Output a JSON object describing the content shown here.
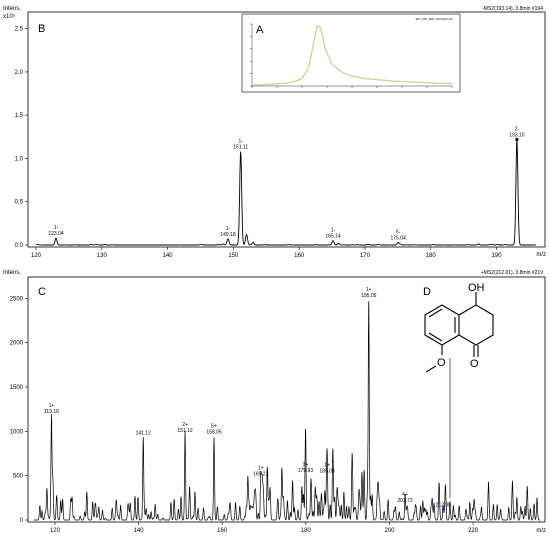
{
  "chart_data": [
    {
      "panel_label": "B",
      "type": "line",
      "ylabel": "Intens.",
      "y_exponent": "x10⁵",
      "xlabel": "m/z",
      "header": "-MS2(193.14), 3.8min #194",
      "xlim": [
        120,
        196
      ],
      "ylim": [
        0,
        2.6
      ],
      "x_ticks": [
        120,
        130,
        140,
        150,
        160,
        170,
        180,
        190
      ],
      "y_ticks": [
        0.0,
        0.5,
        1.0,
        1.5,
        2.0,
        2.5
      ],
      "peaks": [
        {
          "x": 123.04,
          "y": 0.08,
          "charge": "1-",
          "label": "123.04"
        },
        {
          "x": 149.18,
          "y": 0.07,
          "charge": "1-",
          "label": "149.18"
        },
        {
          "x": 151.11,
          "y": 1.08,
          "charge": "1-",
          "label": "151.11"
        },
        {
          "x": 152.0,
          "y": 0.12
        },
        {
          "x": 153.0,
          "y": 0.03
        },
        {
          "x": 165.14,
          "y": 0.05,
          "charge": "1-",
          "label": "165.14"
        },
        {
          "x": 166.0,
          "y": 0.02
        },
        {
          "x": 175.04,
          "y": 0.03,
          "charge": "5-",
          "label": "175.04"
        },
        {
          "x": 193.1,
          "y": 1.22,
          "charge": "2-",
          "label": "193.10"
        }
      ]
    },
    {
      "panel_label": "A",
      "type": "line",
      "inset": true,
      "header": "EIC_MS_SRC_EIC(193.14) ...",
      "x": [
        0,
        0.3,
        0.6,
        0.9,
        1.2,
        1.5,
        1.7,
        1.85,
        1.95,
        2.05,
        2.2,
        2.4,
        2.7,
        3.0,
        3.4,
        3.8,
        4.2,
        4.6,
        5.0,
        5.4,
        5.8,
        6.0
      ],
      "values": [
        0.02,
        0.02,
        0.03,
        0.04,
        0.06,
        0.12,
        0.3,
        0.7,
        0.97,
        0.95,
        0.6,
        0.35,
        0.22,
        0.16,
        0.12,
        0.1,
        0.08,
        0.07,
        0.06,
        0.05,
        0.04,
        0.04
      ]
    },
    {
      "panel_label": "C",
      "panel_label_d": "D",
      "type": "line",
      "ylabel": "Intens.",
      "xlabel": "m/z",
      "header": "+MS2(212.01), 3.8min #219",
      "xlim": [
        115,
        236
      ],
      "ylim": [
        0,
        2650
      ],
      "x_ticks": [
        120,
        140,
        160,
        180,
        200,
        220
      ],
      "y_ticks": [
        0,
        500,
        1000,
        1500,
        2000,
        2500
      ],
      "peaks": [
        {
          "x": 119.18,
          "y": 1170,
          "charge": "1+",
          "label": "119.18"
        },
        {
          "x": 141.12,
          "y": 930,
          "label": "141.12"
        },
        {
          "x": 151.12,
          "y": 960,
          "charge": "2+",
          "label": "151.12"
        },
        {
          "x": 158.05,
          "y": 940,
          "charge": "5+",
          "label": "158.05"
        },
        {
          "x": 169.22,
          "y": 470,
          "charge": "1+",
          "label": "169.22"
        },
        {
          "x": 179.93,
          "y": 510,
          "charge": "3+",
          "label": "179.93"
        },
        {
          "x": 185.08,
          "y": 500,
          "charge": "1+",
          "label": "185.08"
        },
        {
          "x": 195.05,
          "y": 2480,
          "charge": "1+",
          "label": "195.05"
        },
        {
          "x": 203.72,
          "y": 170,
          "charge": "4+",
          "label": "203.72"
        },
        {
          "x": 212.88,
          "y": 120,
          "label": "212.88"
        }
      ],
      "structure_labels": {
        "hydroxyl": "OH",
        "carbonyl": "O",
        "methoxy": "O"
      }
    }
  ]
}
